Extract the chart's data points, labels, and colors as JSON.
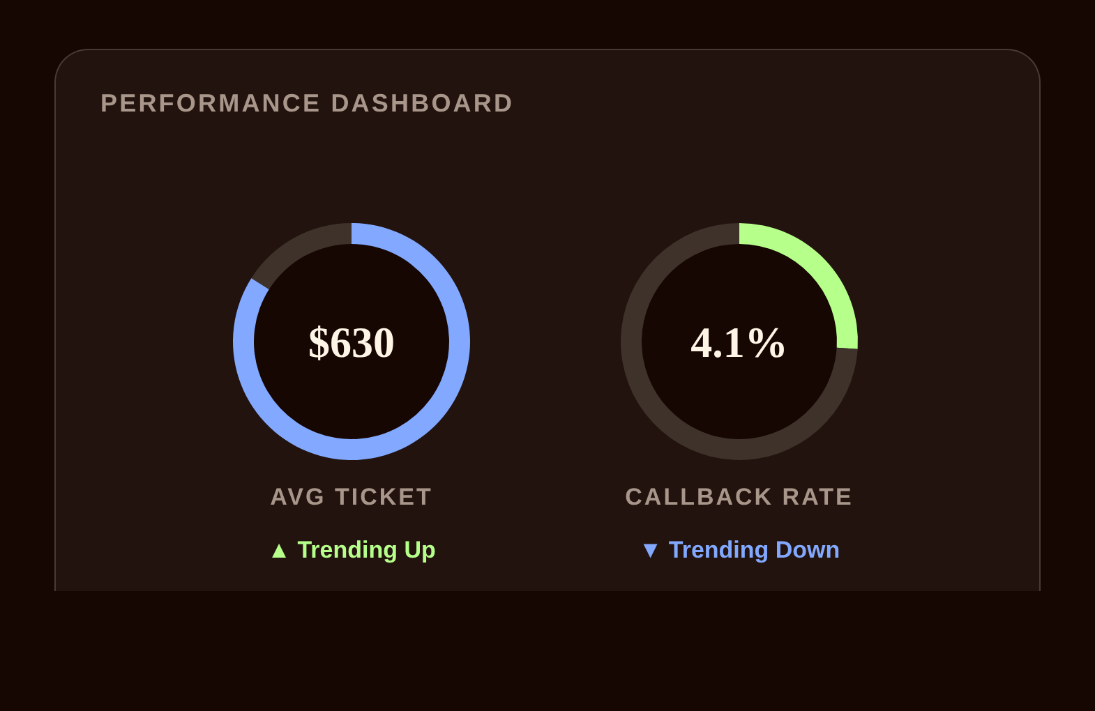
{
  "chart_data": [
    {
      "type": "other",
      "title": "PERFORMANCE DASHBOARD"
    },
    {
      "type": "donut",
      "title": "AVG TICKET",
      "categories": [
        null,
        null
      ],
      "values": [
        84,
        16
      ],
      "colors": [
        "#82a8ff",
        "#3f322b"
      ],
      "annotations": [
        "$630",
        "▲ Trending Up"
      ]
    },
    {
      "type": "donut",
      "title": "CALLBACK RATE",
      "categories": [
        null,
        null
      ],
      "values": [
        26,
        74
      ],
      "colors": [
        "#b5ff8a",
        "#3f322b"
      ],
      "annotations": [
        "4.1%",
        "▼ Trending Down"
      ]
    }
  ]
}
